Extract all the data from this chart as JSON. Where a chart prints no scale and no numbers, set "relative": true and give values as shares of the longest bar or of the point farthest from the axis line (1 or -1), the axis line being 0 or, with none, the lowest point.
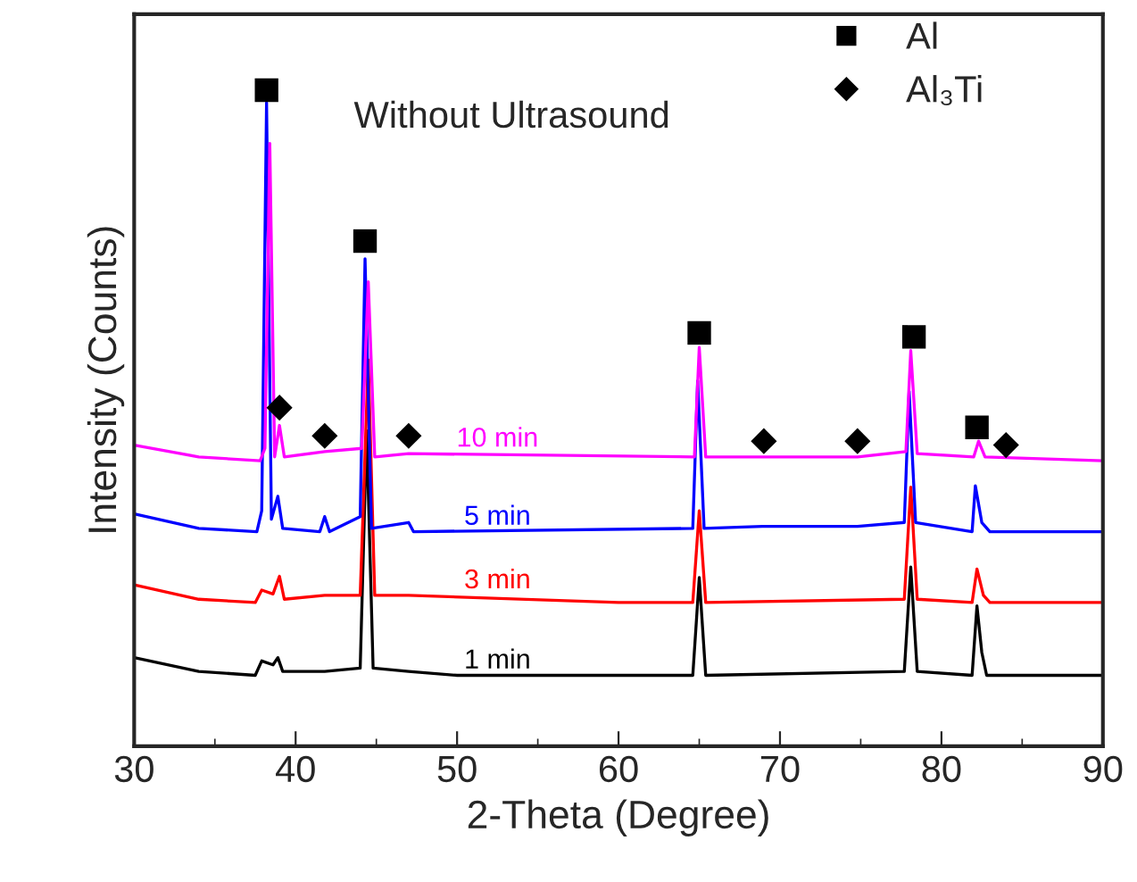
{
  "chart_data": {
    "type": "line",
    "relative": true,
    "xlabel": "2-Theta (Degree)",
    "ylabel": "Intensity (Counts)",
    "xlim": [
      30,
      90
    ],
    "xticks": [
      30,
      40,
      50,
      60,
      70,
      80,
      90
    ],
    "grid": false,
    "legend": "top right",
    "annotations": [
      "Without Ultrasound"
    ],
    "series": [
      {
        "name": "1 min",
        "color": "#000000",
        "x": [
          30,
          34,
          37.5,
          37.9,
          38.3,
          38.6,
          38.9,
          39.2,
          41.8,
          44.0,
          44.4,
          44.8,
          47.0,
          50,
          64.6,
          65.0,
          65.4,
          77.7,
          78.1,
          78.5,
          81.9,
          82.2,
          82.5,
          82.8,
          90
        ],
        "values": [
          0.135,
          0.114,
          0.108,
          0.13,
          null,
          0.124,
          0.135,
          0.114,
          0.114,
          0.119,
          0.481,
          0.119,
          0.114,
          0.108,
          0.108,
          0.257,
          0.108,
          0.114,
          0.273,
          0.114,
          0.108,
          0.214,
          0.143,
          0.108,
          0.108
        ]
      },
      {
        "name": "3 min",
        "color": "#ff0000",
        "x": [
          30,
          34,
          37.5,
          37.9,
          38.3,
          38.6,
          39.0,
          39.3,
          41.8,
          44.0,
          44.5,
          44.9,
          47.0,
          60,
          64.6,
          65.0,
          65.4,
          77.7,
          78.1,
          78.5,
          81.9,
          82.2,
          82.6,
          83,
          90
        ],
        "values": [
          0.246,
          0.224,
          0.219,
          0.238,
          null,
          0.232,
          0.259,
          0.224,
          0.23,
          0.23,
          0.589,
          0.23,
          0.23,
          0.219,
          0.219,
          0.359,
          0.219,
          0.224,
          0.395,
          0.224,
          0.219,
          0.27,
          0.23,
          0.219,
          0.219
        ]
      },
      {
        "name": "5 min",
        "color": "#0000ff",
        "x": [
          30,
          34,
          37.6,
          37.9,
          38.2,
          38.5,
          38.9,
          39.2,
          41.5,
          41.8,
          42.1,
          44.0,
          44.3,
          44.7,
          47.0,
          47.3,
          64.6,
          64.9,
          65.3,
          68.9,
          74.8,
          77.7,
          78.0,
          78.4,
          81.9,
          82.1,
          82.5,
          83,
          90
        ],
        "values": [
          0.354,
          0.332,
          0.327,
          0.359,
          0.981,
          0.346,
          0.381,
          0.332,
          0.327,
          0.35,
          0.327,
          0.35,
          0.743,
          0.332,
          0.341,
          0.327,
          0.332,
          0.557,
          0.332,
          0.335,
          0.335,
          0.341,
          0.541,
          0.341,
          0.327,
          0.397,
          0.341,
          0.327,
          0.327
        ]
      },
      {
        "name": "10 min",
        "color": "#ff00ff",
        "x": [
          30,
          34,
          37.8,
          38.1,
          38.4,
          38.7,
          39.0,
          39.3,
          41.8,
          44.1,
          44.5,
          44.9,
          47.0,
          64.7,
          65.0,
          65.4,
          69.0,
          74.8,
          77.8,
          78.1,
          78.5,
          82.0,
          82.3,
          82.7,
          90
        ],
        "values": [
          0.459,
          0.441,
          0.435,
          0.454,
          0.919,
          0.441,
          0.489,
          0.441,
          0.449,
          0.454,
          0.708,
          0.441,
          0.446,
          0.441,
          0.608,
          0.441,
          0.441,
          0.441,
          0.449,
          0.603,
          0.446,
          0.441,
          0.465,
          0.441,
          0.435
        ]
      },
      {
        "name": "Al",
        "type": "scatter",
        "marker": "square",
        "color": "#000000",
        "x": [
          38.2,
          44.3,
          65.0,
          78.3,
          82.2
        ],
        "values": [
          1.0,
          0.77,
          0.63,
          0.624,
          0.486
        ]
      },
      {
        "name": "Al₃Ti",
        "type": "scatter",
        "marker": "diamond",
        "color": "#000000",
        "x": [
          39.0,
          41.8,
          47.0,
          69.0,
          74.8,
          84.0
        ],
        "values": [
          0.516,
          0.473,
          0.473,
          0.465,
          0.465,
          0.459
        ]
      }
    ]
  }
}
